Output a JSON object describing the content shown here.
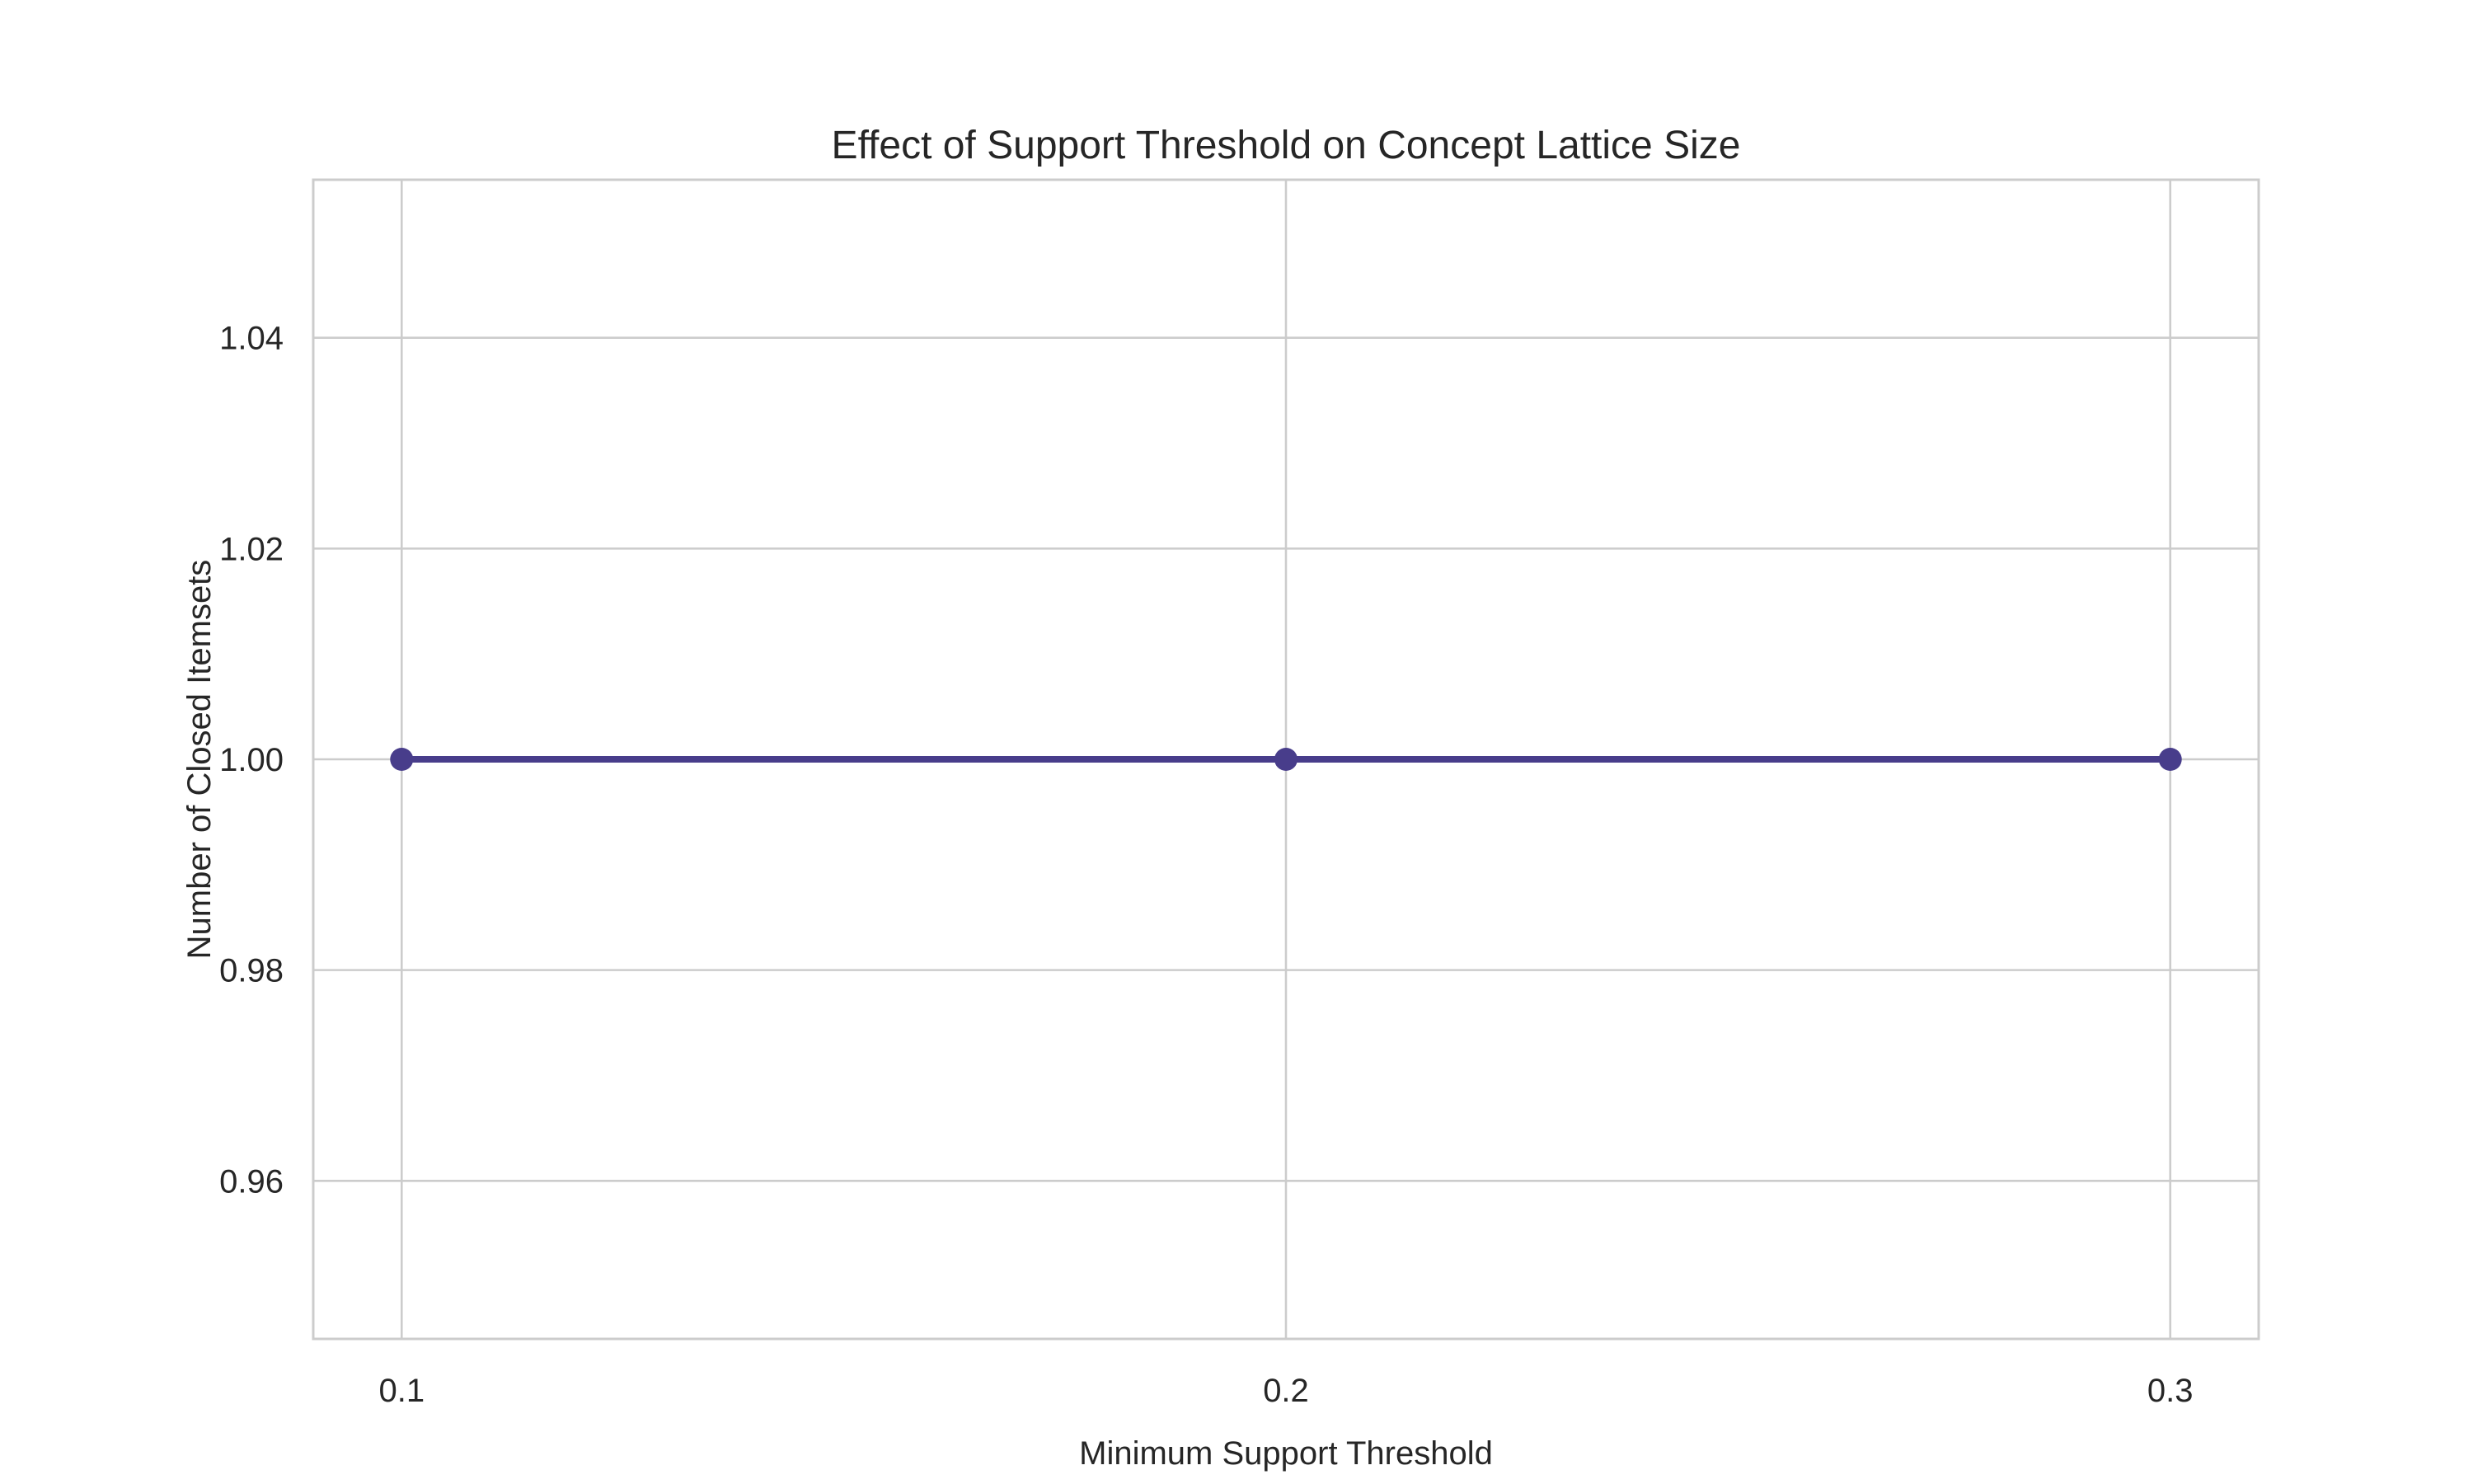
{
  "chart_data": {
    "type": "line",
    "title": "Effect of Support Threshold on Concept Lattice Size",
    "xlabel": "Minimum Support Threshold",
    "ylabel": "Number of Closed Itemsets",
    "x": [
      0.1,
      0.2,
      0.3
    ],
    "series": [
      {
        "values": [
          1.0,
          1.0,
          1.0
        ],
        "color": "#483d8b",
        "marker": "circle"
      }
    ],
    "xlim": [
      0.09,
      0.31
    ],
    "ylim": [
      0.945,
      1.055
    ],
    "xticks": [
      0.1,
      0.2,
      0.3
    ],
    "xtick_labels": [
      "0.1",
      "0.2",
      "0.3"
    ],
    "yticks": [
      0.96,
      0.98,
      1.0,
      1.02,
      1.04
    ],
    "ytick_labels": [
      "0.96",
      "0.98",
      "1.00",
      "1.02",
      "1.04"
    ],
    "grid": true,
    "legend": "none"
  }
}
